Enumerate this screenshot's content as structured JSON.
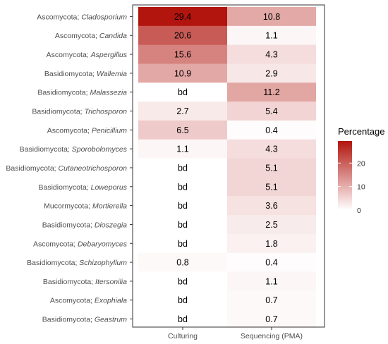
{
  "chart_data": {
    "type": "heatmap",
    "columns": [
      "Culturing",
      "Sequencing (PMA)"
    ],
    "rows": [
      {
        "phylum": "Ascomycota",
        "genus": "Cladosporium",
        "values": [
          29.4,
          10.8
        ],
        "labels": [
          "29.4",
          "10.8"
        ]
      },
      {
        "phylum": "Ascomycota",
        "genus": "Candida",
        "values": [
          20.6,
          1.1
        ],
        "labels": [
          "20.6",
          "1.1"
        ]
      },
      {
        "phylum": "Ascomycota",
        "genus": "Aspergillus",
        "values": [
          15.6,
          4.3
        ],
        "labels": [
          "15.6",
          "4.3"
        ]
      },
      {
        "phylum": "Basidiomycota",
        "genus": "Wallemia",
        "values": [
          10.9,
          2.9
        ],
        "labels": [
          "10.9",
          "2.9"
        ]
      },
      {
        "phylum": "Basidiomycota",
        "genus": "Malassezia",
        "values": [
          null,
          11.2
        ],
        "labels": [
          "bd",
          "11.2"
        ]
      },
      {
        "phylum": "Basidiomycota",
        "genus": "Trichosporon",
        "values": [
          2.7,
          5.4
        ],
        "labels": [
          "2.7",
          "5.4"
        ]
      },
      {
        "phylum": "Ascomycota",
        "genus": "Penicillium",
        "values": [
          6.5,
          0.4
        ],
        "labels": [
          "6.5",
          "0.4"
        ]
      },
      {
        "phylum": "Basidiomycota",
        "genus": "Sporobolomyces",
        "values": [
          1.1,
          4.3
        ],
        "labels": [
          "1.1",
          "4.3"
        ]
      },
      {
        "phylum": "Basidiomycota",
        "genus": "Cutaneotrichosporon",
        "values": [
          null,
          5.1
        ],
        "labels": [
          "bd",
          "5.1"
        ]
      },
      {
        "phylum": "Basidiomycota",
        "genus": "Loweporus",
        "values": [
          null,
          5.1
        ],
        "labels": [
          "bd",
          "5.1"
        ]
      },
      {
        "phylum": "Mucormycota",
        "genus": "Mortierella",
        "values": [
          null,
          3.6
        ],
        "labels": [
          "bd",
          "3.6"
        ]
      },
      {
        "phylum": "Basidiomycota",
        "genus": "Dioszegia",
        "values": [
          null,
          2.5
        ],
        "labels": [
          "bd",
          "2.5"
        ]
      },
      {
        "phylum": "Ascomycota",
        "genus": "Debaryomyces",
        "values": [
          null,
          1.8
        ],
        "labels": [
          "bd",
          "1.8"
        ]
      },
      {
        "phylum": "Basidiomycota",
        "genus": "Schizophyllum",
        "values": [
          0.8,
          0.4
        ],
        "labels": [
          "0.8",
          "0.4"
        ]
      },
      {
        "phylum": "Basidiomycota",
        "genus": "Itersonilia",
        "values": [
          null,
          1.1
        ],
        "labels": [
          "bd",
          "1.1"
        ]
      },
      {
        "phylum": "Ascomycota",
        "genus": "Exophiala",
        "values": [
          null,
          0.7
        ],
        "labels": [
          "bd",
          "0.7"
        ]
      },
      {
        "phylum": "Basidiomycota",
        "genus": "Geastrum",
        "values": [
          null,
          0.7
        ],
        "labels": [
          "bd",
          "0.7"
        ]
      }
    ],
    "legend": {
      "title": "Percentage",
      "ticks": [
        0,
        10,
        20
      ],
      "range": [
        0,
        29.4
      ]
    },
    "colors": {
      "low": "#ffffff",
      "high": "#b2150e"
    },
    "grid": false
  }
}
